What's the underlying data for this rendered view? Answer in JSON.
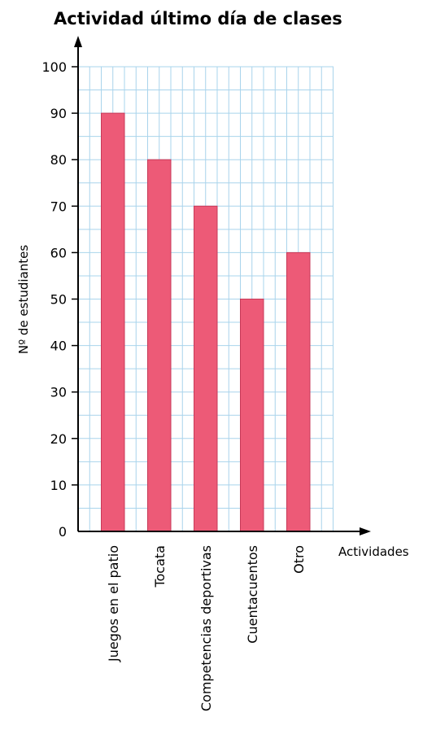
{
  "chart_data": {
    "type": "bar",
    "title": "Actividad último día de clases",
    "xlabel": "Actividades",
    "ylabel": "Nº de estudiantes",
    "categories": [
      "Juegos en el patio",
      "Tocata",
      "Competencias deportivas",
      "Cuentacuentos",
      "Otro"
    ],
    "values": [
      90,
      80,
      70,
      50,
      60
    ],
    "ylim": [
      0,
      100
    ],
    "yticks": [
      "0",
      "10",
      "20",
      "30",
      "40",
      "50",
      "60",
      "70",
      "80",
      "90",
      "100"
    ],
    "grid": true,
    "bar_color": "#ed5a77",
    "bar_edge_color": "#c73a58",
    "grid_color": "#a9d4ec"
  }
}
